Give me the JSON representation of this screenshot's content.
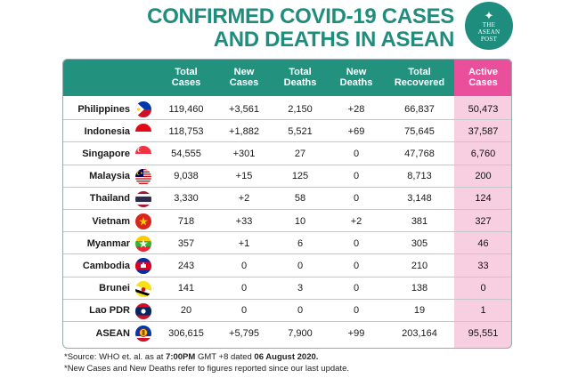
{
  "title": {
    "line1": "CONFIRMED COVID-19 CASES",
    "line2": "AND DEATHS IN ASEAN"
  },
  "logo": {
    "line1": "THE",
    "line2": "ASEAN",
    "line3": "POST"
  },
  "columns": [
    "Total\nCases",
    "New\nCases",
    "Total\nDeaths",
    "New\nDeaths",
    "Total\nRecovered",
    "Active\nCases"
  ],
  "rows": [
    {
      "country": "Philippines",
      "flag": "philippines-flag",
      "values": [
        "119,460",
        "+3,561",
        "2,150",
        "+28",
        "66,837",
        "50,473"
      ]
    },
    {
      "country": "Indonesia",
      "flag": "indonesia-flag",
      "values": [
        "118,753",
        "+1,882",
        "5,521",
        "+69",
        "75,645",
        "37,587"
      ]
    },
    {
      "country": "Singapore",
      "flag": "singapore-flag",
      "values": [
        "54,555",
        "+301",
        "27",
        "0",
        "47,768",
        "6,760"
      ]
    },
    {
      "country": "Malaysia",
      "flag": "malaysia-flag",
      "values": [
        "9,038",
        "+15",
        "125",
        "0",
        "8,713",
        "200"
      ]
    },
    {
      "country": "Thailand",
      "flag": "thailand-flag",
      "values": [
        "3,330",
        "+2",
        "58",
        "0",
        "3,148",
        "124"
      ]
    },
    {
      "country": "Vietnam",
      "flag": "vietnam-flag",
      "values": [
        "718",
        "+33",
        "10",
        "+2",
        "381",
        "327"
      ]
    },
    {
      "country": "Myanmar",
      "flag": "myanmar-flag",
      "values": [
        "357",
        "+1",
        "6",
        "0",
        "305",
        "46"
      ]
    },
    {
      "country": "Cambodia",
      "flag": "cambodia-flag",
      "values": [
        "243",
        "0",
        "0",
        "0",
        "210",
        "33"
      ]
    },
    {
      "country": "Brunei",
      "flag": "brunei-flag",
      "values": [
        "141",
        "0",
        "3",
        "0",
        "138",
        "0"
      ]
    },
    {
      "country": "Lao PDR",
      "flag": "laos-flag",
      "values": [
        "20",
        "0",
        "0",
        "0",
        "19",
        "1"
      ]
    },
    {
      "country": "ASEAN",
      "flag": "asean-flag",
      "values": [
        "306,615",
        "+5,795",
        "7,900",
        "+99",
        "203,164",
        "95,551"
      ]
    }
  ],
  "footnotes": {
    "source_prefix": "*Source: WHO et. al. as at ",
    "source_time": "7:00PM",
    "source_mid": " GMT +8 dated ",
    "source_date": "06 August 2020.",
    "note": "*New Cases and New Deaths refer to figures reported since our last update."
  },
  "colors": {
    "brand_teal": "#22927f",
    "active_header_pink": "#ea4f9b",
    "active_column_pink": "#f8cfe0"
  }
}
